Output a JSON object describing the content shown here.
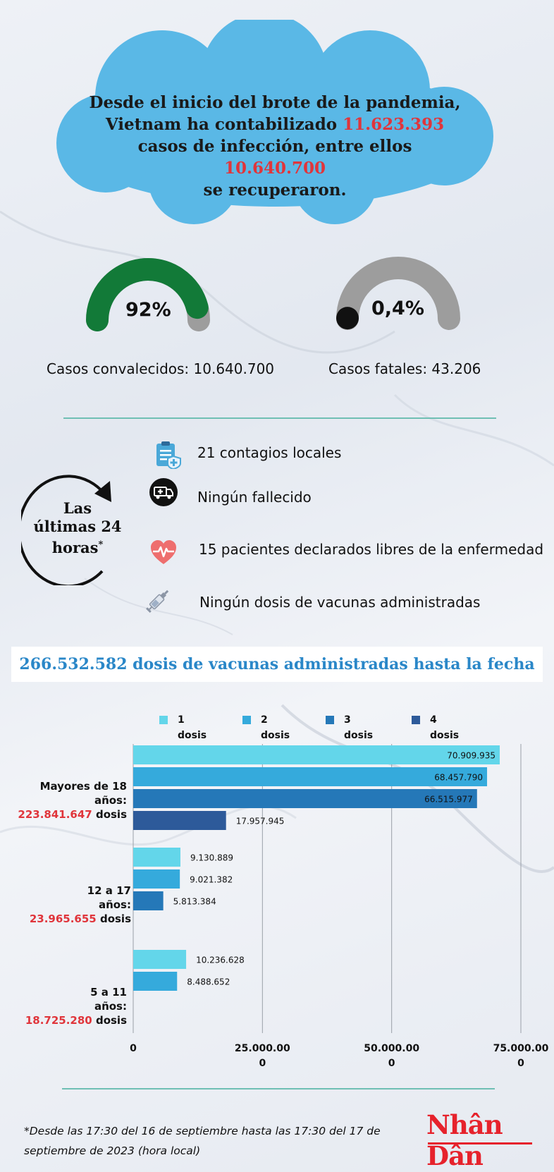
{
  "header": {
    "line1": "Desde el inicio del brote de la pandemia,",
    "line2_pre": "Vietnam ha contabilizado ",
    "infections": "11.623.393",
    "line3_pre": "casos de infección, entre ellos ",
    "recovered": "10.640.700",
    "line4": "se recuperaron."
  },
  "gauges": [
    {
      "pct_text": "92%",
      "fraction": 0.92,
      "label": "Casos convalecidos: 10.640.700",
      "color": "#127a38"
    },
    {
      "pct_text": "0,4%",
      "fraction": 0.004,
      "label": "Casos fatales: 43.206",
      "color": "#111111"
    }
  ],
  "last24": {
    "title_l1": "Las",
    "title_l2": "últimas 24",
    "title_l3": "horas",
    "title_mark": "*",
    "stats": [
      {
        "icon": "clipboard-medical-icon",
        "text": "21 contagios locales"
      },
      {
        "icon": "ambulance-icon",
        "text": "Ningún fallecido"
      },
      {
        "icon": "heart-pulse-icon",
        "text": "15 pacientes declarados libres de la enfermedad"
      },
      {
        "icon": "syringe-icon",
        "text": "Ningún dosis de vacunas administradas"
      }
    ]
  },
  "banner": "266.532.582 dosis de vacunas administradas hasta la fecha",
  "chart_data": {
    "type": "bar",
    "orientation": "horizontal",
    "legend": [
      {
        "num": "1",
        "word": "dosis",
        "color": "#63d6ea"
      },
      {
        "num": "2",
        "word": "dosis",
        "color": "#35aadc"
      },
      {
        "num": "3",
        "word": "dosis",
        "color": "#2578b8"
      },
      {
        "num": "4",
        "word": "dosis",
        "color": "#2d5a9a"
      }
    ],
    "groups": [
      {
        "label_l1": "Mayores de 18",
        "label_l2": "años:",
        "total": "223.841.647",
        "unit": " dosis",
        "values": [
          70909935,
          68457790,
          66515977,
          17957945
        ],
        "value_labels": [
          "70.909.935",
          "68.457.790",
          "66.515.977",
          "17.957.945"
        ]
      },
      {
        "label_l1": "12 a 17",
        "label_l2": "años:",
        "total": "23.965.655",
        "unit": " dosis",
        "values": [
          9130889,
          9021382,
          5813384
        ],
        "value_labels": [
          "9.130.889",
          "9.021.382",
          "5.813.384"
        ]
      },
      {
        "label_l1": "5 a 11",
        "label_l2": "años:",
        "total": "18.725.280",
        "unit": " dosis",
        "values": [
          10236628,
          8488652
        ],
        "value_labels": [
          "10.236.628",
          "8.488.652"
        ]
      }
    ],
    "xlim": [
      0,
      75000000
    ],
    "xticks": [
      {
        "value": 0,
        "l1": "0",
        "l2": ""
      },
      {
        "value": 25000000,
        "l1": "25.000.00",
        "l2": "0"
      },
      {
        "value": 50000000,
        "l1": "50.000.00",
        "l2": "0"
      },
      {
        "value": 75000000,
        "l1": "75.000.00",
        "l2": "0"
      }
    ],
    "grid": true
  },
  "footnote": "*Desde las 17:30 del 16 de septiembre hasta las 17:30 del 17 de septiembre de 2023 (hora local)",
  "logo": "Nhân Dân",
  "colors": {
    "cloud": "#5ab8e6",
    "accent_red": "#e0353b",
    "banner_text": "#2a87c8",
    "divider": "#6fbfb4"
  }
}
